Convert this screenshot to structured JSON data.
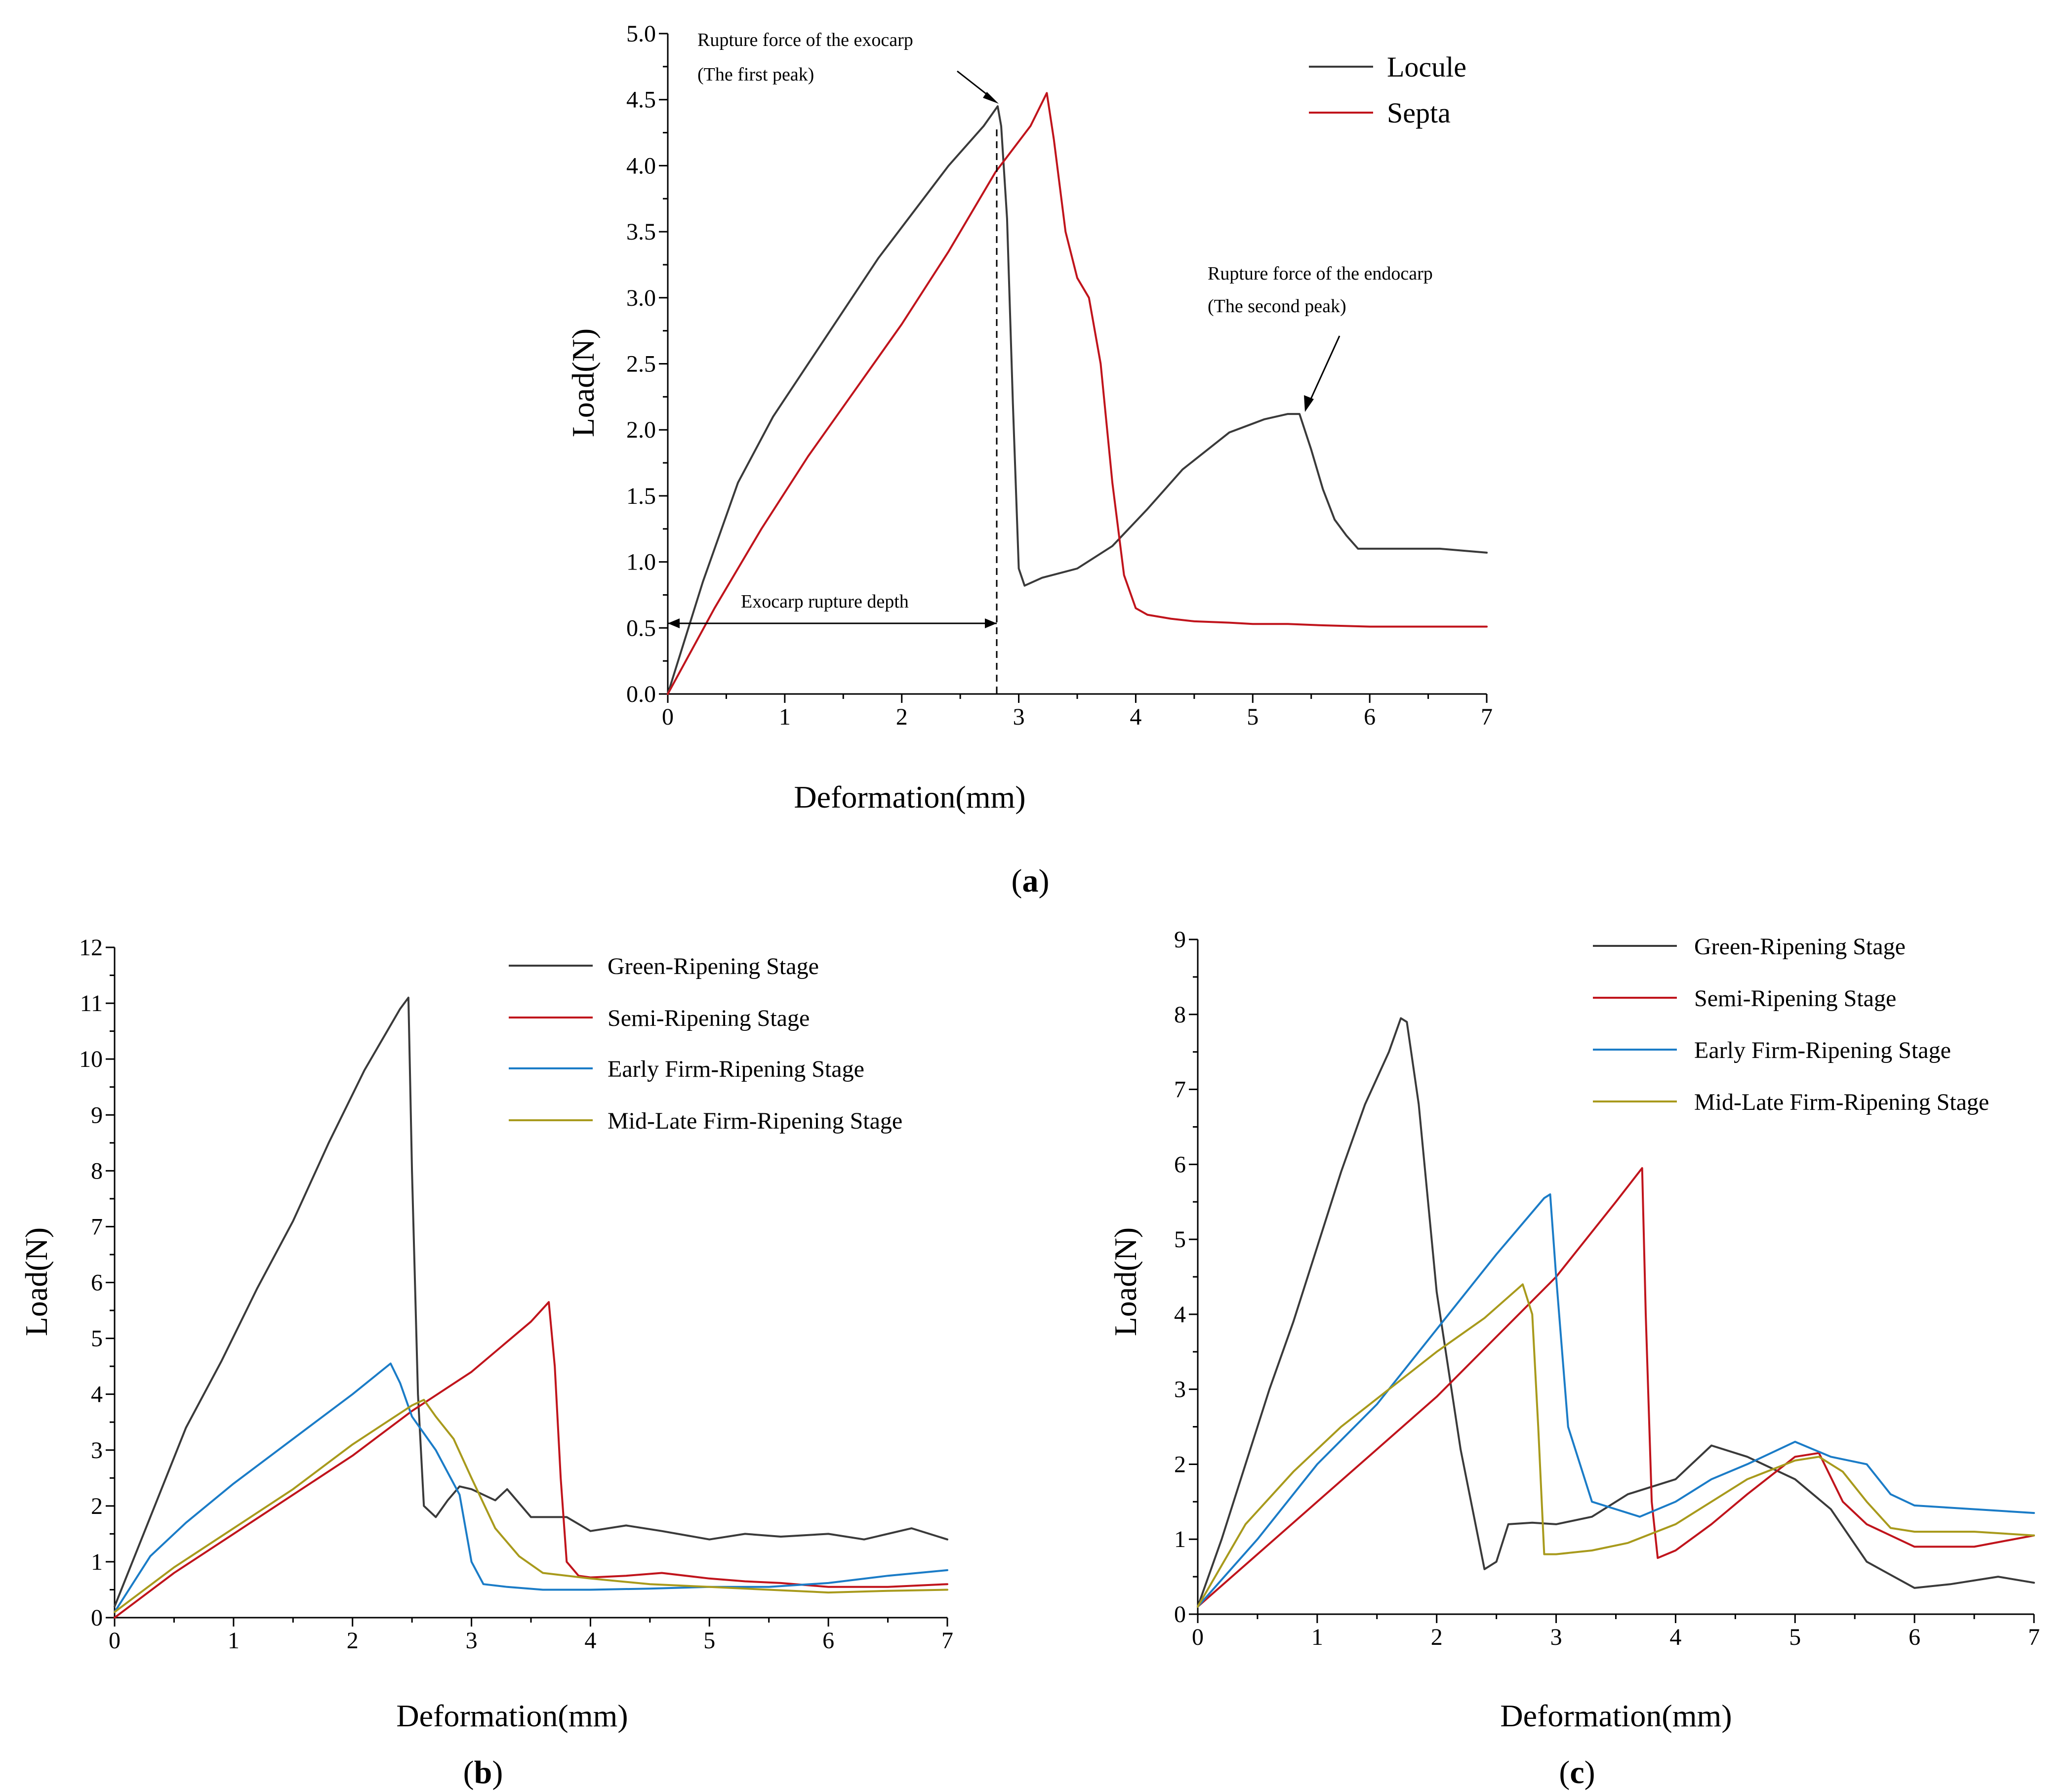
{
  "chart_data": [
    {
      "panel": "a",
      "type": "line",
      "caption_letter": "a",
      "xlabel": "Deformation(mm)",
      "ylabel": "Load(N)",
      "xlim": [
        0,
        7
      ],
      "ylim": [
        0,
        5
      ],
      "x_ticks": [
        0,
        1,
        2,
        3,
        4,
        5,
        6,
        7
      ],
      "x_tick_labels": [
        "0",
        "1",
        "2",
        "3",
        "4",
        "5",
        "6",
        "7"
      ],
      "y_ticks": [
        0,
        0.5,
        1,
        1.5,
        2,
        2.5,
        3,
        3.5,
        4,
        4.5,
        5
      ],
      "y_tick_labels": [
        "0.0",
        "0.5",
        "1.0",
        "1.5",
        "2.0",
        "2.5",
        "3.0",
        "3.5",
        "4.0",
        "4.5",
        "5.0"
      ],
      "legend_position": "top-right",
      "series": [
        {
          "name": "Locule",
          "color": "#3a3a3a",
          "x": [
            0,
            0.3,
            0.6,
            0.9,
            1.2,
            1.5,
            1.8,
            2.1,
            2.4,
            2.7,
            2.82,
            2.85,
            2.9,
            2.95,
            3.0,
            3.05,
            3.2,
            3.5,
            3.8,
            4.1,
            4.4,
            4.8,
            5.1,
            5.3,
            5.4,
            5.5,
            5.6,
            5.7,
            5.8,
            5.9,
            6.0,
            6.3,
            6.6,
            7.0
          ],
          "y": [
            0,
            0.85,
            1.6,
            2.1,
            2.5,
            2.9,
            3.3,
            3.65,
            4.0,
            4.3,
            4.45,
            4.3,
            3.6,
            2.2,
            0.95,
            0.82,
            0.88,
            0.95,
            1.12,
            1.4,
            1.7,
            1.98,
            2.08,
            2.12,
            2.12,
            1.85,
            1.55,
            1.32,
            1.2,
            1.1,
            1.1,
            1.1,
            1.1,
            1.07
          ]
        },
        {
          "name": "Septa",
          "color": "#c0141c",
          "x": [
            0,
            0.4,
            0.8,
            1.2,
            1.6,
            2.0,
            2.4,
            2.8,
            3.1,
            3.24,
            3.3,
            3.4,
            3.5,
            3.6,
            3.7,
            3.8,
            3.9,
            4.0,
            4.1,
            4.3,
            4.5,
            4.8,
            5.0,
            5.3,
            5.6,
            6.0,
            6.3,
            6.6,
            7.0
          ],
          "y": [
            0,
            0.65,
            1.25,
            1.8,
            2.3,
            2.8,
            3.35,
            3.95,
            4.3,
            4.55,
            4.2,
            3.5,
            3.15,
            3.0,
            2.5,
            1.6,
            0.9,
            0.65,
            0.6,
            0.57,
            0.55,
            0.54,
            0.53,
            0.53,
            0.52,
            0.51,
            0.51,
            0.51,
            0.51
          ]
        }
      ],
      "annotations": {
        "first_peak_line1": "Rupture force of the exocarp",
        "first_peak_line2": "(The first peak)",
        "second_peak_line1": "Rupture force of the endocarp",
        "second_peak_line2": "(The second peak)",
        "depth_label": "Exocarp rupture depth",
        "depth_value_mm": 2.82
      }
    },
    {
      "panel": "b",
      "type": "line",
      "caption_letter": "b",
      "xlabel": "Deformation(mm)",
      "ylabel": "Load(N)",
      "xlim": [
        0,
        7
      ],
      "ylim": [
        0,
        12
      ],
      "x_ticks": [
        0,
        1,
        2,
        3,
        4,
        5,
        6,
        7
      ],
      "x_tick_labels": [
        "0",
        "1",
        "2",
        "3",
        "4",
        "5",
        "6",
        "7"
      ],
      "y_ticks": [
        0,
        1,
        2,
        3,
        4,
        5,
        6,
        7,
        8,
        9,
        10,
        11,
        12
      ],
      "y_tick_labels": [
        "0",
        "1",
        "2",
        "3",
        "4",
        "5",
        "6",
        "7",
        "8",
        "9",
        "10",
        "11",
        "12"
      ],
      "legend_position": "top-right",
      "series": [
        {
          "name": "Green-Ripening Stage",
          "color": "#3a3a3a",
          "x": [
            0,
            0.3,
            0.6,
            0.9,
            1.2,
            1.5,
            1.8,
            2.1,
            2.4,
            2.47,
            2.5,
            2.55,
            2.6,
            2.7,
            2.8,
            2.9,
            3.0,
            3.2,
            3.3,
            3.5,
            3.8,
            4.0,
            4.3,
            4.6,
            5.0,
            5.3,
            5.6,
            6.0,
            6.3,
            6.7,
            7.0
          ],
          "y": [
            0.2,
            1.8,
            3.4,
            4.6,
            5.9,
            7.1,
            8.5,
            9.8,
            10.9,
            11.1,
            8.0,
            4.0,
            2.0,
            1.8,
            2.1,
            2.35,
            2.3,
            2.1,
            2.3,
            1.8,
            1.8,
            1.55,
            1.65,
            1.55,
            1.4,
            1.5,
            1.45,
            1.5,
            1.4,
            1.6,
            1.4
          ]
        },
        {
          "name": "Semi-Ripening Stage",
          "color": "#c0141c",
          "x": [
            0,
            0.5,
            1.0,
            1.5,
            2.0,
            2.5,
            3.0,
            3.5,
            3.65,
            3.7,
            3.75,
            3.8,
            3.9,
            4.0,
            4.3,
            4.6,
            5.0,
            5.3,
            5.6,
            6.0,
            6.5,
            7.0
          ],
          "y": [
            0,
            0.8,
            1.5,
            2.2,
            2.9,
            3.7,
            4.4,
            5.3,
            5.65,
            4.5,
            2.5,
            1.0,
            0.75,
            0.72,
            0.75,
            0.8,
            0.7,
            0.65,
            0.62,
            0.55,
            0.55,
            0.6
          ]
        },
        {
          "name": "Early Firm-Ripening Stage",
          "color": "#1b7cc7",
          "x": [
            0,
            0.3,
            0.6,
            1.0,
            1.5,
            2.0,
            2.32,
            2.4,
            2.5,
            2.7,
            2.9,
            3.0,
            3.1,
            3.3,
            3.6,
            4.0,
            4.5,
            5.0,
            5.5,
            6.0,
            6.5,
            7.0
          ],
          "y": [
            0.1,
            1.1,
            1.7,
            2.4,
            3.2,
            4.0,
            4.55,
            4.2,
            3.6,
            3.0,
            2.2,
            1.0,
            0.6,
            0.55,
            0.5,
            0.5,
            0.52,
            0.55,
            0.55,
            0.62,
            0.75,
            0.85
          ]
        },
        {
          "name": "Mid-Late Firm-Ripening Stage",
          "color": "#a89a1c",
          "x": [
            0,
            0.5,
            1.0,
            1.5,
            2.0,
            2.5,
            2.6,
            2.7,
            2.85,
            3.0,
            3.2,
            3.4,
            3.6,
            4.0,
            4.5,
            5.0,
            5.5,
            6.0,
            6.5,
            7.0
          ],
          "y": [
            0.1,
            0.9,
            1.6,
            2.3,
            3.1,
            3.8,
            3.9,
            3.6,
            3.2,
            2.5,
            1.6,
            1.1,
            0.8,
            0.7,
            0.6,
            0.55,
            0.5,
            0.45,
            0.48,
            0.5
          ]
        }
      ],
      "legend_entries": [
        "Green-Ripening Stage",
        "Semi-Ripening Stage",
        "Early Firm-Ripening Stage",
        "Mid-Late Firm-Ripening Stage"
      ]
    },
    {
      "panel": "c",
      "type": "line",
      "caption_letter": "c",
      "xlabel": "Deformation(mm)",
      "ylabel": "Load(N)",
      "xlim": [
        0,
        7
      ],
      "ylim": [
        0,
        9
      ],
      "x_ticks": [
        0,
        1,
        2,
        3,
        4,
        5,
        6,
        7
      ],
      "x_tick_labels": [
        "0",
        "1",
        "2",
        "3",
        "4",
        "5",
        "6",
        "7"
      ],
      "y_ticks": [
        0,
        1,
        2,
        3,
        4,
        5,
        6,
        7,
        8,
        9
      ],
      "y_tick_labels": [
        "0",
        "1",
        "2",
        "3",
        "4",
        "5",
        "6",
        "7",
        "8",
        "9"
      ],
      "legend_position": "top-right",
      "series": [
        {
          "name": "Green-Ripening Stage",
          "color": "#3a3a3a",
          "x": [
            0,
            0.2,
            0.4,
            0.6,
            0.8,
            1.0,
            1.2,
            1.4,
            1.6,
            1.7,
            1.75,
            1.85,
            2.0,
            2.2,
            2.4,
            2.5,
            2.6,
            2.8,
            3.0,
            3.3,
            3.6,
            4.0,
            4.3,
            4.6,
            5.0,
            5.3,
            5.6,
            6.0,
            6.3,
            6.7,
            7.0
          ],
          "y": [
            0.1,
            1.0,
            2.0,
            3.0,
            3.9,
            4.9,
            5.9,
            6.8,
            7.5,
            7.95,
            7.9,
            6.8,
            4.3,
            2.2,
            0.6,
            0.7,
            1.2,
            1.22,
            1.2,
            1.3,
            1.6,
            1.8,
            2.25,
            2.1,
            1.8,
            1.4,
            0.7,
            0.35,
            0.4,
            0.5,
            0.42
          ]
        },
        {
          "name": "Semi-Ripening Stage",
          "color": "#c0141c",
          "x": [
            0,
            0.5,
            1.0,
            1.5,
            2.0,
            2.5,
            3.0,
            3.5,
            3.72,
            3.75,
            3.8,
            3.85,
            4.0,
            4.3,
            4.6,
            5.0,
            5.2,
            5.4,
            5.6,
            6.0,
            6.5,
            7.0
          ],
          "y": [
            0.1,
            0.8,
            1.5,
            2.2,
            2.9,
            3.7,
            4.5,
            5.5,
            5.95,
            4.0,
            1.5,
            0.75,
            0.85,
            1.2,
            1.6,
            2.1,
            2.15,
            1.5,
            1.2,
            0.9,
            0.9,
            1.05
          ]
        },
        {
          "name": "Early Firm-Ripening Stage",
          "color": "#1b7cc7",
          "x": [
            0,
            0.5,
            1.0,
            1.5,
            2.0,
            2.5,
            2.9,
            2.95,
            3.0,
            3.1,
            3.3,
            3.5,
            3.7,
            4.0,
            4.3,
            4.6,
            5.0,
            5.3,
            5.6,
            5.8,
            6.0,
            6.5,
            7.0
          ],
          "y": [
            0.1,
            1.0,
            2.0,
            2.8,
            3.8,
            4.8,
            5.55,
            5.6,
            4.5,
            2.5,
            1.5,
            1.4,
            1.3,
            1.5,
            1.8,
            2.0,
            2.3,
            2.1,
            2.0,
            1.6,
            1.45,
            1.4,
            1.35
          ]
        },
        {
          "name": "Mid-Late Firm-Ripening Stage",
          "color": "#a89a1c",
          "x": [
            0,
            0.4,
            0.8,
            1.2,
            1.6,
            2.0,
            2.4,
            2.72,
            2.8,
            2.85,
            2.9,
            3.0,
            3.3,
            3.6,
            4.0,
            4.3,
            4.6,
            5.0,
            5.2,
            5.4,
            5.6,
            5.8,
            6.0,
            6.5,
            7.0
          ],
          "y": [
            0.1,
            1.2,
            1.9,
            2.5,
            3.0,
            3.5,
            3.95,
            4.4,
            4.0,
            2.5,
            0.8,
            0.8,
            0.85,
            0.95,
            1.2,
            1.5,
            1.8,
            2.05,
            2.1,
            1.9,
            1.5,
            1.15,
            1.1,
            1.1,
            1.05
          ]
        }
      ],
      "legend_entries": [
        "Green-Ripening Stage",
        "Semi-Ripening Stage",
        "Early Firm-Ripening Stage",
        "Mid-Late Firm-Ripening Stage"
      ]
    }
  ]
}
